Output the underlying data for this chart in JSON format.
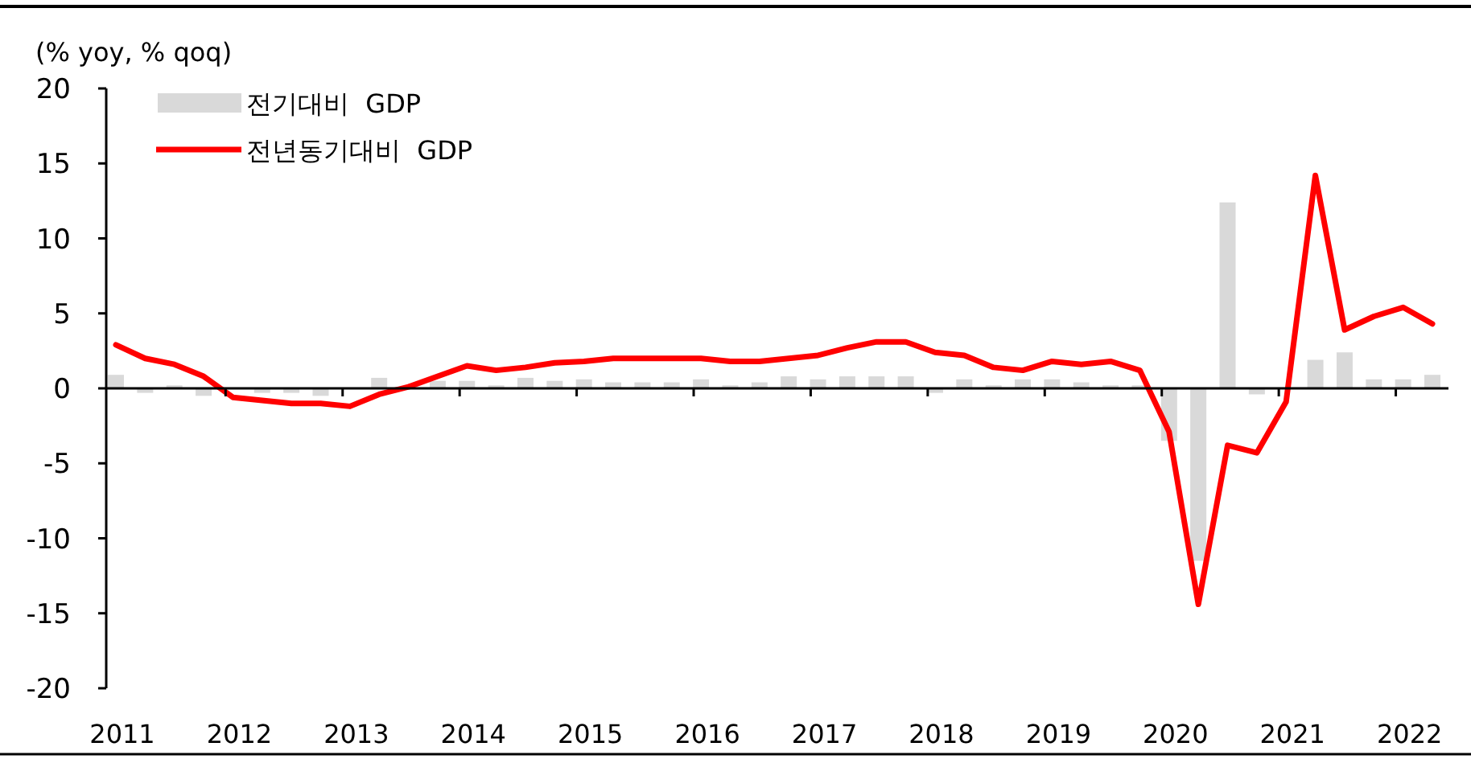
{
  "chart_data": {
    "type": "bar",
    "ylabel": "(% yoy, % qoq)",
    "categories": [
      "2011",
      null,
      null,
      null,
      "2012",
      null,
      null,
      null,
      "2013",
      null,
      null,
      null,
      "2014",
      null,
      null,
      null,
      "2015",
      null,
      null,
      null,
      "2016",
      null,
      null,
      null,
      "2017",
      null,
      null,
      null,
      "2018",
      null,
      null,
      null,
      "2019",
      null,
      null,
      null,
      "2020",
      null,
      null,
      null,
      "2021",
      null,
      null,
      null,
      "2022",
      null
    ],
    "series": [
      {
        "name": "전기대비  GDP",
        "color": "#d9d9d9",
        "values": [
          0.9,
          -0.3,
          0.2,
          -0.5,
          null,
          -0.3,
          -0.3,
          -0.5,
          null,
          0.7,
          null,
          0.5,
          0.5,
          0.2,
          0.7,
          0.5,
          0.6,
          0.4,
          0.4,
          0.4,
          0.6,
          0.2,
          0.4,
          0.8,
          0.6,
          0.8,
          0.8,
          0.8,
          -0.3,
          0.6,
          0.2,
          0.6,
          0.6,
          0.4,
          0.2,
          0.2,
          -3.5,
          -11.5,
          12.4,
          -0.4,
          0,
          1.9,
          2.4,
          0.6,
          0.6,
          0.9
        ]
      },
      {
        "name": "전년동기대비  GDP",
        "type": "line",
        "color": "#ff0000",
        "values": [
          2.9,
          2.0,
          1.6,
          0.8,
          -0.6,
          -0.8,
          -1.0,
          -1.0,
          -1.2,
          -0.4,
          0.1,
          0.8,
          1.5,
          1.2,
          1.4,
          1.7,
          1.8,
          2.0,
          2.0,
          2.0,
          2.0,
          1.8,
          1.8,
          2.0,
          2.2,
          2.7,
          3.1,
          3.1,
          2.4,
          2.2,
          1.4,
          1.2,
          1.8,
          1.6,
          1.8,
          1.2,
          -2.9,
          -14.4,
          -3.8,
          -4.3,
          -0.9,
          14.2,
          3.9,
          4.8,
          5.4,
          4.3
        ]
      }
    ],
    "ylim": [
      -20,
      20
    ],
    "yticks": [
      -20,
      -15,
      -10,
      -5,
      0,
      5,
      10,
      15,
      20
    ],
    "legend": "top left"
  }
}
